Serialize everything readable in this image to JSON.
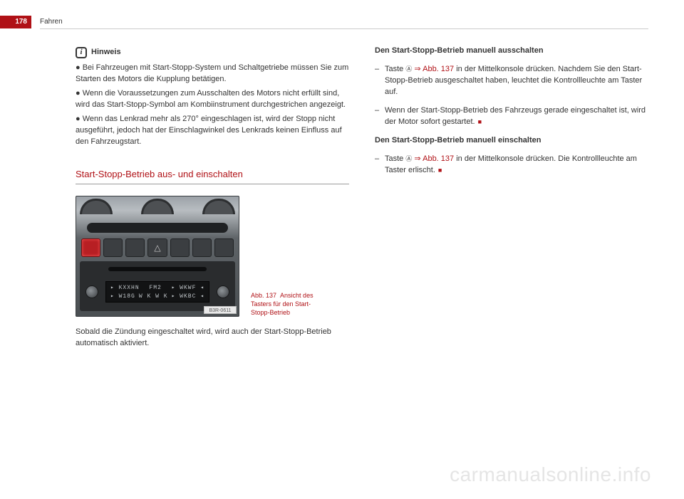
{
  "page": {
    "number": "178",
    "chapter": "Fahren",
    "accent_color": "#b01116",
    "text_color": "#333333",
    "bg_color": "#ffffff"
  },
  "hinweis": {
    "title": "Hinweis",
    "bullets": [
      "Bei Fahrzeugen mit Start-Stopp-System und Schaltgetriebe müssen Sie zum Starten des Motors die Kupplung betätigen.",
      "Wenn die Voraussetzungen zum Ausschalten des Motors nicht erfüllt sind, wird das Start-Stopp-Symbol am Kombiinstrument durchgestrichen angezeigt.",
      "Wenn das Lenkrad mehr als 270° eingeschlagen ist, wird der Stopp nicht ausgeführt, jedoch hat der Einschlagwinkel des Lenkrads keinen Einfluss auf den Fahrzeugstart."
    ]
  },
  "section": {
    "heading": "Start-Stopp-Betrieb aus- und einschalten",
    "figure": {
      "ref_label": "Abb. 137",
      "caption_rest": "Ansicht des Tasters für den Start-Stopp-Betrieb",
      "tag": "B3R-0611",
      "display_line1_left": "▸ KXXHN",
      "display_line1_mid": "FM2",
      "display_line1_right": "▸ WKWF ◂",
      "display_line2_left": "▸ W18G",
      "display_line2_mid": "W K W K",
      "display_line2_right": "▸ WKBC ◂"
    },
    "text_after_figure": "Sobald die Zündung eingeschaltet wird, wird auch der Start-Stopp-Betrieb automatisch aktiviert."
  },
  "right_col": {
    "sub1": {
      "heading": "Den Start-Stopp-Betrieb manuell ausschalten",
      "item1_prefix": "Taste ",
      "item1_icon": "Ⓐ",
      "item1_arrow": " ⇒ ",
      "item1_ref": "Abb. 137",
      "item1_rest": " in der Mittelkonsole drücken. Nachdem Sie den Start-Stopp-Betrieb ausgeschaltet haben, leuchtet die Kontrollleuchte am Taster auf.",
      "item2": "Wenn der Start-Stopp-Betrieb des Fahrzeugs gerade eingeschaltet ist, wird der Motor sofort gestartet."
    },
    "sub2": {
      "heading": "Den Start-Stopp-Betrieb manuell einschalten",
      "item1_prefix": "Taste ",
      "item1_icon": "Ⓐ",
      "item1_arrow": " ⇒ ",
      "item1_ref": "Abb. 137",
      "item1_rest": " in der Mittelkonsole drücken. Die Kontrollleuchte am Taster erlischt."
    }
  },
  "watermark": "carmanualsonline.info"
}
